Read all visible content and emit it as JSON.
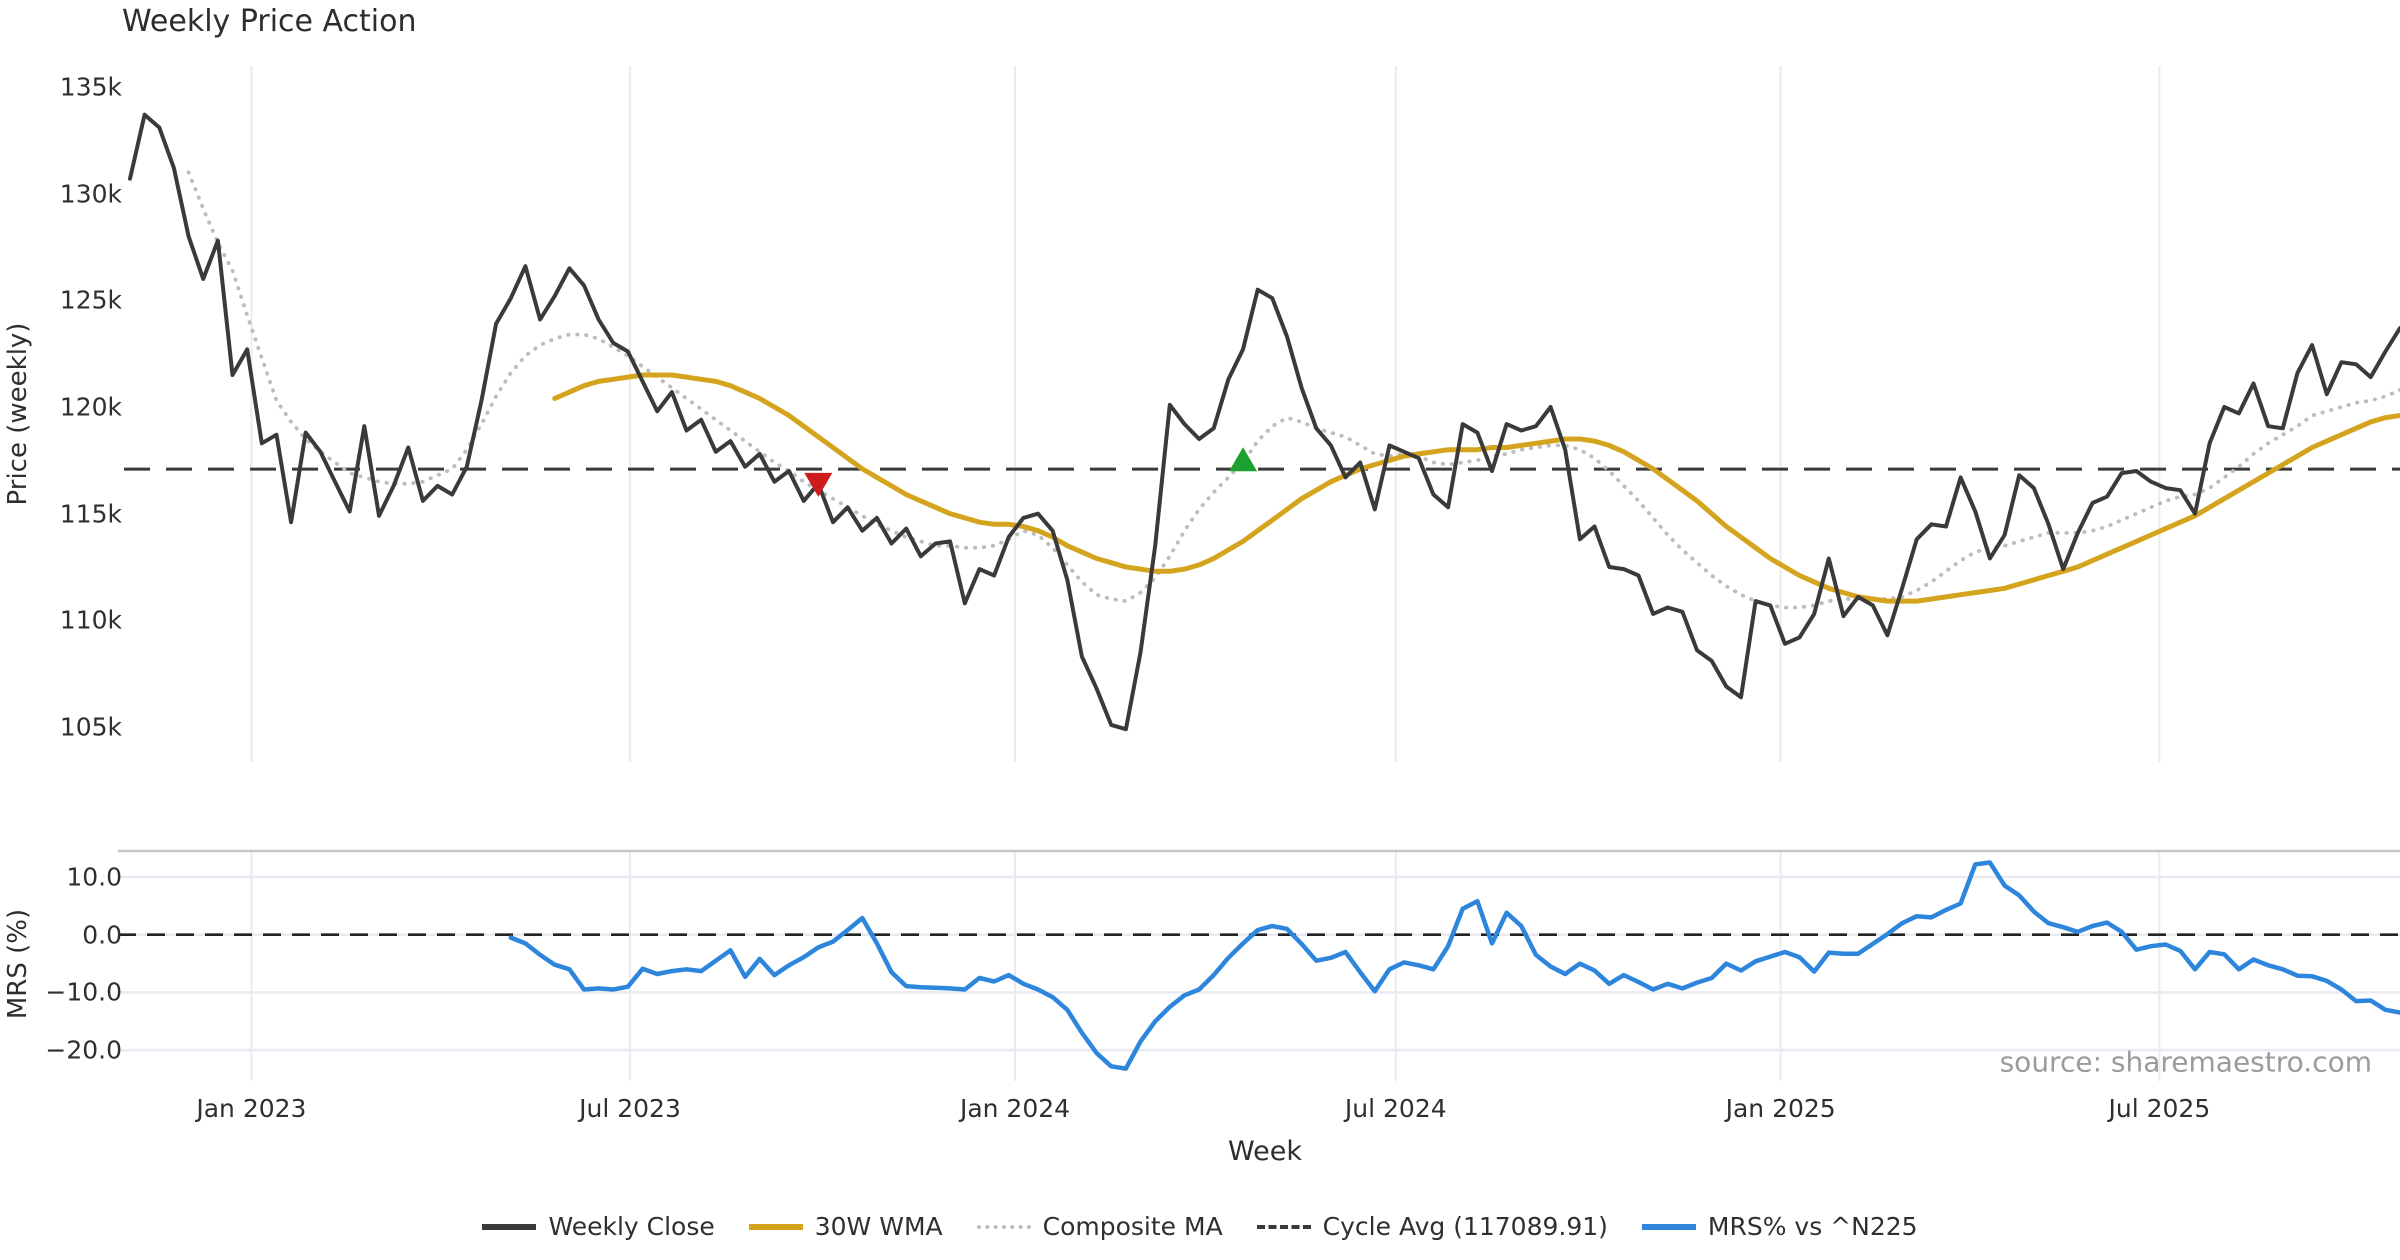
{
  "chart_data": {
    "type": "line",
    "title": "Weekly Price Action",
    "source": "source: sharemaestro.com",
    "x_axis": {
      "label": "Week",
      "start_date": "2022-11-04",
      "interval": "weekly",
      "n_weeks": 156,
      "ticks": [
        {
          "label": "Jan 2023",
          "week": 8.29
        },
        {
          "label": "Jul 2023",
          "week": 34.14
        },
        {
          "label": "Jan 2024",
          "week": 60.43
        },
        {
          "label": "Jul 2024",
          "week": 86.43
        },
        {
          "label": "Jan 2025",
          "week": 112.71
        },
        {
          "label": "Jul 2025",
          "week": 138.57
        }
      ]
    },
    "panels": [
      {
        "id": "price",
        "ylabel": "Price (weekly)",
        "unit": "thousands",
        "ylim": [
          103.4,
          136.0
        ],
        "yticks": [
          {
            "label": "135k",
            "value": 135
          },
          {
            "label": "130k",
            "value": 130
          },
          {
            "label": "125k",
            "value": 125
          },
          {
            "label": "120k",
            "value": 120
          },
          {
            "label": "115k",
            "value": 115
          },
          {
            "label": "110k",
            "value": 110
          },
          {
            "label": "105k",
            "value": 105
          }
        ],
        "grid": "vertical-only",
        "series": [
          {
            "name": "Weekly Close",
            "color": "#3A3A3A",
            "style": "solid",
            "width": 4,
            "start_week": 0,
            "values": [
              130.7,
              133.7,
              133.1,
              131.2,
              128.0,
              126.0,
              127.8,
              121.5,
              122.7,
              118.3,
              118.7,
              114.6,
              118.8,
              117.9,
              116.5,
              115.1,
              119.1,
              114.9,
              116.3,
              118.1,
              115.6,
              116.3,
              115.9,
              117.2,
              120.3,
              123.9,
              125.1,
              126.6,
              124.1,
              125.2,
              126.5,
              125.7,
              124.1,
              123.0,
              122.6,
              121.2,
              119.8,
              120.7,
              118.9,
              119.4,
              117.9,
              118.4,
              117.2,
              117.8,
              116.5,
              117.0,
              115.6,
              116.4,
              114.6,
              115.3,
              114.2,
              114.8,
              113.6,
              114.3,
              113.0,
              113.6,
              113.7,
              110.8,
              112.4,
              112.1,
              113.9,
              114.8,
              115.0,
              114.2,
              111.9,
              108.3,
              106.8,
              105.1,
              104.9,
              108.5,
              113.5,
              120.1,
              119.2,
              118.5,
              119.0,
              121.3,
              122.7,
              125.5,
              125.1,
              123.3,
              120.9,
              119.0,
              118.2,
              116.7,
              117.4,
              115.2,
              118.2,
              117.9,
              117.6,
              115.9,
              115.3,
              119.2,
              118.8,
              117.0,
              119.2,
              118.9,
              119.1,
              120.0,
              118.0,
              113.8,
              114.4,
              112.5,
              112.4,
              112.1,
              110.3,
              110.6,
              110.4,
              108.6,
              108.1,
              106.9,
              106.4,
              110.9,
              110.7,
              108.9,
              109.2,
              110.3,
              112.9,
              110.2,
              111.1,
              110.7,
              109.3,
              111.5,
              113.8,
              114.5,
              114.4,
              116.7,
              115.1,
              112.9,
              114.0,
              116.8,
              116.2,
              114.5,
              112.4,
              114.1,
              115.5,
              115.8,
              116.9,
              117.0,
              116.5,
              116.2,
              116.1,
              115.0,
              118.3,
              120.0,
              119.7,
              121.1,
              119.1,
              119.0,
              121.6,
              122.9,
              120.6,
              122.1,
              122.0,
              121.4,
              122.6,
              123.7
            ]
          },
          {
            "name": "30W WMA",
            "color": "#D5A41E",
            "style": "solid",
            "width": 5,
            "start_week": 29,
            "values": [
              120.4,
              120.7,
              121.0,
              121.2,
              121.3,
              121.4,
              121.5,
              121.5,
              121.5,
              121.4,
              121.3,
              121.2,
              121.0,
              120.7,
              120.4,
              120.0,
              119.6,
              119.1,
              118.6,
              118.1,
              117.6,
              117.1,
              116.7,
              116.3,
              115.9,
              115.6,
              115.3,
              115.0,
              114.8,
              114.6,
              114.5,
              114.5,
              114.4,
              114.2,
              113.9,
              113.5,
              113.2,
              112.9,
              112.7,
              112.5,
              112.4,
              112.3,
              112.3,
              112.4,
              112.6,
              112.9,
              113.3,
              113.7,
              114.2,
              114.7,
              115.2,
              115.7,
              116.1,
              116.5,
              116.8,
              117.1,
              117.3,
              117.5,
              117.7,
              117.8,
              117.9,
              118.0,
              118.0,
              118.0,
              118.1,
              118.1,
              118.2,
              118.3,
              118.4,
              118.5,
              118.5,
              118.4,
              118.2,
              117.9,
              117.5,
              117.1,
              116.6,
              116.1,
              115.6,
              115.0,
              114.4,
              113.9,
              113.4,
              112.9,
              112.5,
              112.1,
              111.8,
              111.5,
              111.3,
              111.1,
              111.0,
              110.9,
              110.9,
              110.9,
              111.0,
              111.1,
              111.2,
              111.3,
              111.4,
              111.5,
              111.7,
              111.9,
              112.1,
              112.3,
              112.5,
              112.8,
              113.1,
              113.4,
              113.7,
              114.0,
              114.3,
              114.6,
              114.9,
              115.3,
              115.7,
              116.1,
              116.5,
              116.9,
              117.3,
              117.7,
              118.1,
              118.4,
              118.7,
              119.0,
              119.3,
              119.5,
              119.6
            ]
          },
          {
            "name": "Composite MA",
            "color": "#BDBDBD",
            "style": "dotted",
            "width": 3.8,
            "start_week": 4,
            "values": [
              131.0,
              129.3,
              127.7,
              126.4,
              124.3,
              122.3,
              120.3,
              119.3,
              118.5,
              117.9,
              117.4,
              116.9,
              116.7,
              116.5,
              116.4,
              116.4,
              116.5,
              116.8,
              117.1,
              118.0,
              119.2,
              120.5,
              121.6,
              122.4,
              122.9,
              123.2,
              123.4,
              123.4,
              123.2,
              122.8,
              122.4,
              121.9,
              121.4,
              120.9,
              120.4,
              119.9,
              119.4,
              118.9,
              118.4,
              117.9,
              117.4,
              117.0,
              116.5,
              116.1,
              115.7,
              115.3,
              114.9,
              114.5,
              114.2,
              113.9,
              113.7,
              113.5,
              113.5,
              113.4,
              113.4,
              113.5,
              113.8,
              114.2,
              114.0,
              113.4,
              112.6,
              111.8,
              111.2,
              111.0,
              110.9,
              111.3,
              112.0,
              113.0,
              114.2,
              115.2,
              116.0,
              116.7,
              117.4,
              118.4,
              119.1,
              119.5,
              119.3,
              119.0,
              118.8,
              118.6,
              118.2,
              117.8,
              117.7,
              117.8,
              117.7,
              117.4,
              117.3,
              117.4,
              117.5,
              117.7,
              117.8,
              118.0,
              118.1,
              118.2,
              118.2,
              118.0,
              117.6,
              117.0,
              116.3,
              115.6,
              114.8,
              114.0,
              113.3,
              112.7,
              112.1,
              111.6,
              111.2,
              110.9,
              110.7,
              110.6,
              110.6,
              110.7,
              110.9,
              111.0,
              111.0,
              111.0,
              111.0,
              111.1,
              111.4,
              111.8,
              112.3,
              112.8,
              113.2,
              113.4,
              113.5,
              113.7,
              113.9,
              114.1,
              114.1,
              114.1,
              114.2,
              114.4,
              114.7,
              115.0,
              115.3,
              115.6,
              115.8,
              115.9,
              116.2,
              116.7,
              117.2,
              117.8,
              118.3,
              118.7,
              119.1,
              119.6,
              119.8,
              120.0,
              120.2,
              120.3,
              120.5,
              120.8
            ]
          },
          {
            "name": "Cycle Avg",
            "color": "#3A3A3A",
            "style": "dashed",
            "width": 3,
            "constant_value": 117.08991,
            "label_value": "117089.91"
          }
        ],
        "markers": [
          {
            "shape": "triangle-down",
            "color": "#CE1B1C",
            "week": 47,
            "value": 116.35
          },
          {
            "shape": "triangle-up",
            "color": "#1CA12E",
            "week": 76,
            "value": 117.55
          }
        ]
      },
      {
        "id": "mrs",
        "ylabel": "MRS (%)",
        "ylim": [
          -25.3,
          14.6
        ],
        "yticks": [
          {
            "label": "10.0",
            "value": 10
          },
          {
            "label": "0.0",
            "value": 0
          },
          {
            "label": "−10.0",
            "value": -10
          },
          {
            "label": "−20.0",
            "value": -20
          }
        ],
        "zero_line": {
          "style": "dashed",
          "color": "#222222"
        },
        "series": [
          {
            "name": "MRS% vs ^N225",
            "color": "#2E86DC",
            "style": "solid",
            "width": 4.5,
            "start_week": 26,
            "values": [
              -0.5,
              -1.5,
              -3.5,
              -5.2,
              -6.0,
              -9.5,
              -9.3,
              -9.5,
              -9.0,
              -5.9,
              -6.8,
              -6.3,
              -6.0,
              -6.3,
              -4.5,
              -2.7,
              -7.3,
              -4.2,
              -7.0,
              -5.3,
              -3.9,
              -2.2,
              -1.2,
              0.8,
              2.9,
              -1.5,
              -6.5,
              -8.9,
              -9.1,
              -9.2,
              -9.3,
              -9.5,
              -7.5,
              -8.1,
              -7.0,
              -8.5,
              -9.5,
              -10.8,
              -13.0,
              -17.0,
              -20.5,
              -22.8,
              -23.2,
              -18.5,
              -15.0,
              -12.5,
              -10.5,
              -9.5,
              -7.0,
              -4.0,
              -1.5,
              0.8,
              1.5,
              1.0,
              -1.6,
              -4.5,
              -4.0,
              -3.0,
              -6.5,
              -9.8,
              -6.0,
              -4.8,
              -5.3,
              -6.0,
              -2.0,
              4.5,
              5.8,
              -1.5,
              3.8,
              1.5,
              -3.5,
              -5.5,
              -6.8,
              -5.0,
              -6.2,
              -8.5,
              -7.0,
              -8.2,
              -9.5,
              -8.5,
              -9.3,
              -8.3,
              -7.5,
              -5.0,
              -6.2,
              -4.6,
              -3.8,
              -3.0,
              -3.9,
              -6.4,
              -3.1,
              -3.3,
              -3.3,
              -1.6,
              0.1,
              2.0,
              3.2,
              3.0,
              4.3,
              5.4,
              12.2,
              12.5,
              8.5,
              6.8,
              4.0,
              2.0,
              1.3,
              0.5,
              1.5,
              2.1,
              0.5,
              -2.6,
              -2.0,
              -1.7,
              -2.8,
              -6.0,
              -3.0,
              -3.4,
              -6.0,
              -4.3,
              -5.3,
              -6.0,
              -7.1,
              -7.2,
              -8.0,
              -9.5,
              -11.5,
              -11.4,
              -13.0,
              -13.5
            ]
          }
        ]
      }
    ],
    "legend": {
      "position": "bottom-center",
      "items": [
        {
          "label": "Weekly Close",
          "color": "#3A3A3A",
          "style": "solid"
        },
        {
          "label": "30W WMA",
          "color": "#D5A41E",
          "style": "solid"
        },
        {
          "label": "Composite MA",
          "color": "#BDBDBD",
          "style": "dotted"
        },
        {
          "label": "Cycle Avg (117089.91)",
          "color": "#3A3A3A",
          "style": "dashed"
        },
        {
          "label": "MRS% vs ^N225",
          "color": "#2E86DC",
          "style": "solid"
        }
      ]
    },
    "colors": {
      "grid": "#EBEBEB",
      "grid_mrs": "#E9E9F1",
      "panel_top_line": "#C5C5C5",
      "text": "#2e2e2e",
      "source_text": "#9b9b9b"
    }
  }
}
